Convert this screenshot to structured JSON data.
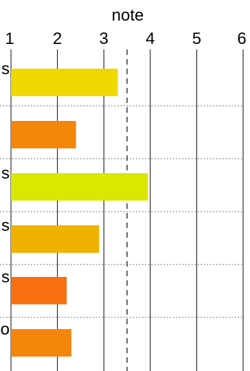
{
  "chart_data": {
    "type": "bar",
    "orientation": "horizontal",
    "title": "",
    "xlabel": "note",
    "ylabel": "",
    "xlim": [
      1,
      6
    ],
    "x_ticks": [
      1,
      2,
      3,
      4,
      5,
      6
    ],
    "x_tick_labels": [
      "1",
      "2",
      "3",
      "4",
      "5",
      "6"
    ],
    "x_axis_position": "top",
    "grid": "vertical solid lines at integer ticks",
    "reference_line": {
      "x": 3.5,
      "style": "dashed"
    },
    "category_labels_visible": [
      "s",
      "",
      "s",
      "s",
      "s",
      "o"
    ],
    "values": [
      3.3,
      2.4,
      3.95,
      2.9,
      2.2,
      2.3
    ],
    "bar_colors": [
      "#eed800",
      "#f5860c",
      "#d8e800",
      "#f0b200",
      "#f67012",
      "#f5860c"
    ]
  }
}
